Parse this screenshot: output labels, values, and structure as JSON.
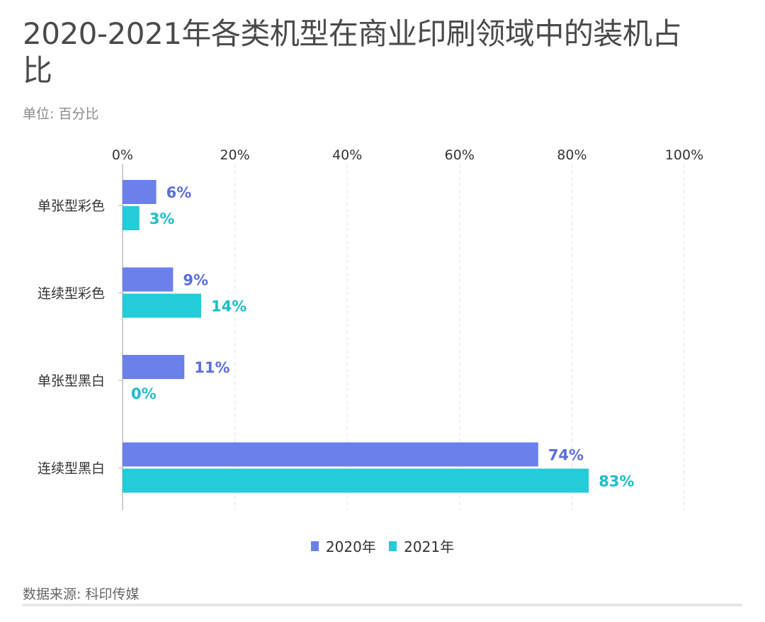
{
  "title": "2020-2021年各类机型在商业印刷领域中的装机占比",
  "subtitle": "单位: 百分比",
  "source": "数据来源: 科印传媒",
  "chart_data": {
    "type": "bar",
    "orientation": "horizontal",
    "title": "2020-2021年各类机型在商业印刷领域中的装机占比",
    "categories": [
      "单张型彩色",
      "连续型彩色",
      "单张型黑白",
      "连续型黑白"
    ],
    "series": [
      {
        "name": "2020年",
        "values": [
          6,
          9,
          11,
          74
        ],
        "labels": [
          "6%",
          "9%",
          "11%",
          "74%"
        ],
        "color": "#6b80ea",
        "label_color": "#5a6fd8"
      },
      {
        "name": "2021年",
        "values": [
          3,
          14,
          0,
          83
        ],
        "labels": [
          "3%",
          "14%",
          "0%",
          "83%"
        ],
        "color": "#24cbd8",
        "label_color": "#1cbcc9"
      }
    ],
    "xlim": [
      0,
      100
    ],
    "xticks": [
      0,
      20,
      40,
      60,
      80,
      100
    ],
    "xtick_labels": [
      "0%",
      "20%",
      "40%",
      "60%",
      "80%",
      "100%"
    ],
    "xlabel": "",
    "ylabel": "",
    "grid": "vertical dashed",
    "legend": "bottom-center"
  }
}
